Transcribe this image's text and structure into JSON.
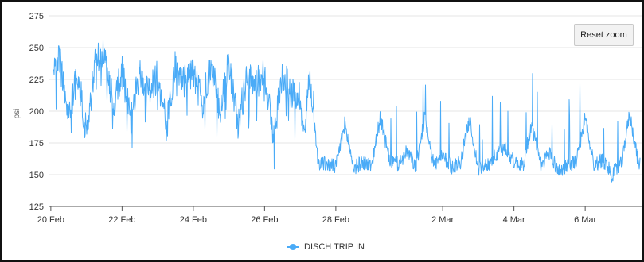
{
  "reset_zoom_label": "Reset zoom",
  "legend": {
    "label": "DISCH TRIP IN"
  },
  "chart_data": {
    "type": "line",
    "ylabel": "psi",
    "xlabel": "",
    "title": "",
    "ylim": [
      125,
      275
    ],
    "yticks": [
      125,
      150,
      175,
      200,
      225,
      250,
      275
    ],
    "xlim": [
      "2020-02-19T23:00",
      "2020-03-07T14:00"
    ],
    "xticks": [
      {
        "date": "2020-02-20",
        "label": "20 Feb"
      },
      {
        "date": "2020-02-22",
        "label": "22 Feb"
      },
      {
        "date": "2020-02-24",
        "label": "24 Feb"
      },
      {
        "date": "2020-02-26",
        "label": "26 Feb"
      },
      {
        "date": "2020-02-28",
        "label": "28 Feb"
      },
      {
        "date": "2020-03-02",
        "label": "2 Mar"
      },
      {
        "date": "2020-03-04",
        "label": "4 Mar"
      },
      {
        "date": "2020-03-06",
        "label": "6 Mar"
      }
    ],
    "grid": "horizontal",
    "legend_position": "bottom-center",
    "color": "#4aabf7",
    "series": [
      {
        "name": "DISCH TRIP IN",
        "x": [
          "2020-02-19T23:00",
          "2020-02-20T06:00",
          "2020-02-20T12:00",
          "2020-02-20T18:00",
          "2020-02-21T00:00",
          "2020-02-21T06:00",
          "2020-02-21T12:00",
          "2020-02-21T18:00",
          "2020-02-22T00:00",
          "2020-02-22T06:00",
          "2020-02-22T12:00",
          "2020-02-22T18:00",
          "2020-02-23T00:00",
          "2020-02-23T06:00",
          "2020-02-23T12:00",
          "2020-02-23T18:00",
          "2020-02-24T00:00",
          "2020-02-24T06:00",
          "2020-02-24T12:00",
          "2020-02-24T18:00",
          "2020-02-25T00:00",
          "2020-02-25T06:00",
          "2020-02-25T12:00",
          "2020-02-25T18:00",
          "2020-02-26T00:00",
          "2020-02-26T06:00",
          "2020-02-26T12:00",
          "2020-02-26T18:00",
          "2020-02-27T00:00",
          "2020-02-27T03:00",
          "2020-02-27T06:00",
          "2020-02-27T12:00",
          "2020-02-27T18:00",
          "2020-02-28T00:00",
          "2020-02-28T06:00",
          "2020-02-28T12:00",
          "2020-02-28T18:00",
          "2020-02-29T00:00",
          "2020-02-29T06:00",
          "2020-02-29T12:00",
          "2020-02-29T18:00",
          "2020-03-01T00:00",
          "2020-03-01T06:00",
          "2020-03-01T12:00",
          "2020-03-01T18:00",
          "2020-03-02T00:00",
          "2020-03-02T06:00",
          "2020-03-02T12:00",
          "2020-03-02T18:00",
          "2020-03-03T00:00",
          "2020-03-03T06:00",
          "2020-03-03T12:00",
          "2020-03-03T18:00",
          "2020-03-04T00:00",
          "2020-03-04T06:00",
          "2020-03-04T12:00",
          "2020-03-04T18:00",
          "2020-03-05T00:00",
          "2020-03-05T06:00",
          "2020-03-05T12:00",
          "2020-03-05T18:00",
          "2020-03-06T00:00",
          "2020-03-06T06:00",
          "2020-03-06T12:00",
          "2020-03-06T18:00",
          "2020-03-07T00:00",
          "2020-03-07T06:00",
          "2020-03-07T12:00"
        ],
        "y": [
          228,
          240,
          196,
          230,
          182,
          238,
          246,
          205,
          232,
          192,
          230,
          215,
          228,
          186,
          238,
          224,
          232,
          205,
          236,
          200,
          240,
          188,
          226,
          220,
          232,
          178,
          230,
          214,
          212,
          178,
          232,
          160,
          158,
          156,
          190,
          155,
          160,
          157,
          195,
          162,
          158,
          168,
          156,
          196,
          158,
          164,
          156,
          160,
          194,
          154,
          158,
          165,
          172,
          160,
          157,
          190,
          156,
          168,
          152,
          158,
          160,
          195,
          157,
          162,
          150,
          158,
          198,
          158
        ]
      }
    ]
  }
}
